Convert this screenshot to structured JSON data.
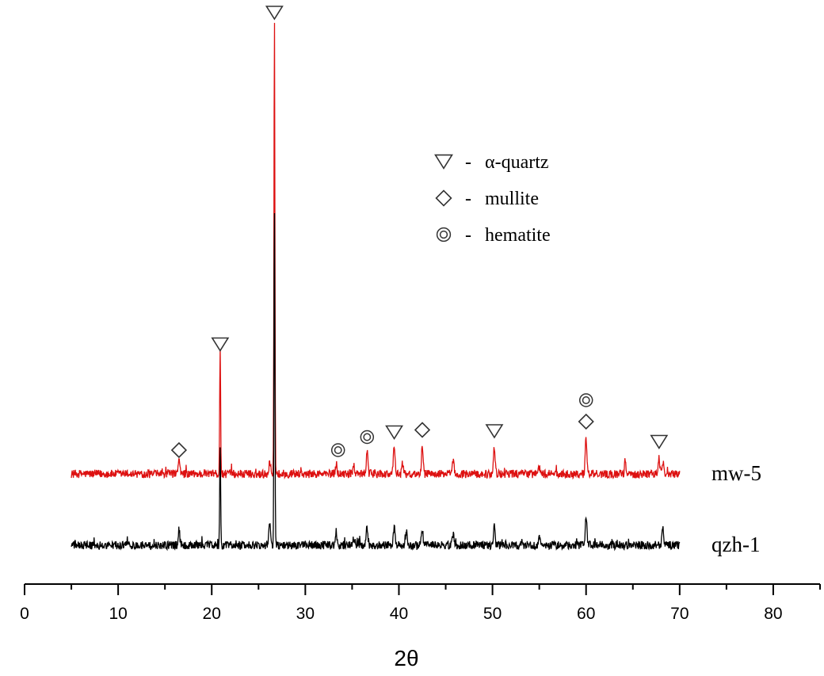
{
  "chart_data": {
    "type": "line",
    "title": "",
    "xlabel": "2θ",
    "ylabel": "",
    "xlim": [
      0,
      85
    ],
    "x_ticks": [
      "0",
      "10",
      "20",
      "30",
      "40",
      "50",
      "60",
      "70",
      "80"
    ],
    "y_axis_shown": false,
    "grid": false,
    "legend": {
      "placement": "top-right",
      "entries": [
        {
          "symbol": "triangle-down",
          "label": "α-quartz"
        },
        {
          "symbol": "diamond",
          "label": "mullite"
        },
        {
          "symbol": "double-circle",
          "label": "hematite"
        }
      ],
      "separator": "-"
    },
    "series": [
      {
        "name": "mw-5",
        "color": "#dd1111",
        "x_range": [
          5,
          70
        ],
        "baseline": 0.0,
        "noise": 0.35,
        "peaks": [
          {
            "x": 16.5,
            "h": 1.1
          },
          {
            "x": 20.9,
            "h": 10.5
          },
          {
            "x": 26.2,
            "h": 1.1
          },
          {
            "x": 26.7,
            "h": 38.5
          },
          {
            "x": 33.3,
            "h": 0.9
          },
          {
            "x": 35.2,
            "h": 0.6
          },
          {
            "x": 36.6,
            "h": 1.8
          },
          {
            "x": 39.5,
            "h": 2.3
          },
          {
            "x": 40.4,
            "h": 0.9
          },
          {
            "x": 42.5,
            "h": 2.5
          },
          {
            "x": 45.8,
            "h": 1.1
          },
          {
            "x": 50.2,
            "h": 2.3
          },
          {
            "x": 55.0,
            "h": 0.6
          },
          {
            "x": 60.0,
            "h": 3.1
          },
          {
            "x": 64.2,
            "h": 1.0
          },
          {
            "x": 67.8,
            "h": 1.3
          },
          {
            "x": 68.2,
            "h": 1.1
          }
        ]
      },
      {
        "name": "qzh-1",
        "color": "#000000",
        "x_range": [
          5,
          70
        ],
        "baseline": -6.0,
        "noise": 0.35,
        "peaks": [
          {
            "x": 16.5,
            "h": 1.4
          },
          {
            "x": 20.9,
            "h": 8.2
          },
          {
            "x": 26.2,
            "h": 2.0
          },
          {
            "x": 26.7,
            "h": 28.5
          },
          {
            "x": 33.3,
            "h": 1.1
          },
          {
            "x": 35.2,
            "h": 0.6
          },
          {
            "x": 36.6,
            "h": 1.6
          },
          {
            "x": 39.5,
            "h": 1.5
          },
          {
            "x": 40.8,
            "h": 1.1
          },
          {
            "x": 42.5,
            "h": 1.4
          },
          {
            "x": 45.8,
            "h": 1.0
          },
          {
            "x": 50.2,
            "h": 1.5
          },
          {
            "x": 55.0,
            "h": 0.6
          },
          {
            "x": 60.0,
            "h": 2.4
          },
          {
            "x": 68.2,
            "h": 1.5
          }
        ]
      }
    ],
    "peak_markers": [
      {
        "x": 16.5,
        "y": 2.0,
        "symbol": "diamond"
      },
      {
        "x": 20.9,
        "y": 10.9,
        "symbol": "triangle-down"
      },
      {
        "x": 26.7,
        "y": 38.8,
        "symbol": "triangle-down"
      },
      {
        "x": 33.5,
        "y": 2.0,
        "symbol": "double-circle"
      },
      {
        "x": 36.6,
        "y": 3.1,
        "symbol": "double-circle"
      },
      {
        "x": 39.5,
        "y": 3.5,
        "symbol": "triangle-down"
      },
      {
        "x": 42.5,
        "y": 3.7,
        "symbol": "diamond"
      },
      {
        "x": 50.2,
        "y": 3.6,
        "symbol": "triangle-down"
      },
      {
        "x": 60.0,
        "y": 4.4,
        "symbol": "diamond"
      },
      {
        "x": 60.0,
        "y": 6.2,
        "symbol": "double-circle"
      },
      {
        "x": 67.8,
        "y": 2.7,
        "symbol": "triangle-down"
      }
    ]
  }
}
